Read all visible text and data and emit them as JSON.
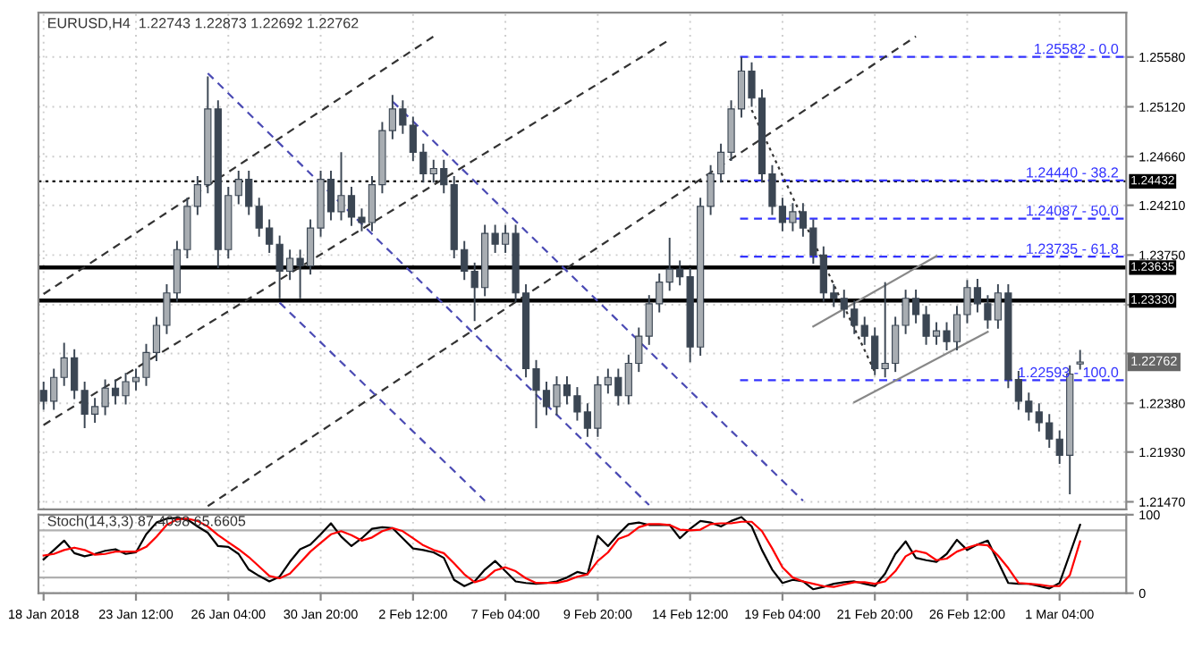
{
  "chart_data": [
    {
      "type": "candlestick",
      "title": "EURUSD,H4  1.22743 1.22873 1.22692 1.22762",
      "categories": [
        null,
        null,
        null,
        null,
        null,
        null,
        null,
        null,
        null,
        null,
        null,
        null,
        null,
        null,
        null,
        null,
        null,
        null,
        null,
        null,
        null,
        null,
        null,
        null,
        null,
        null,
        null,
        null,
        null,
        null,
        null,
        null,
        null,
        null,
        null,
        null,
        null,
        null,
        null,
        null,
        null,
        null,
        null,
        null,
        null,
        null,
        null,
        null,
        null,
        null,
        null,
        null,
        null,
        null,
        null,
        null,
        null,
        null,
        null,
        null,
        null,
        null,
        null,
        null,
        null,
        null,
        null,
        null,
        null,
        null,
        null,
        null,
        null,
        null,
        null,
        null,
        null,
        null,
        null,
        null,
        null,
        null,
        null,
        null,
        null,
        null,
        null,
        null,
        null,
        null,
        null,
        null,
        null,
        null,
        null,
        null,
        null,
        null,
        null,
        null,
        null,
        null,
        null,
        null,
        null,
        null
      ],
      "ohlc": [
        [
          1.225,
          1.2258,
          1.2232,
          1.224
        ],
        [
          1.224,
          1.227,
          1.2232,
          1.2262
        ],
        [
          1.2262,
          1.2294,
          1.2254,
          1.228
        ],
        [
          1.228,
          1.2288,
          1.2242,
          1.225
        ],
        [
          1.225,
          1.2258,
          1.2215,
          1.2228
        ],
        [
          1.2228,
          1.2243,
          1.222,
          1.2235
        ],
        [
          1.2235,
          1.226,
          1.2227,
          1.2252
        ],
        [
          1.2252,
          1.226,
          1.2237,
          1.2245
        ],
        [
          1.2245,
          1.2266,
          1.2237,
          1.2258
        ],
        [
          1.2258,
          1.227,
          1.225,
          1.2262
        ],
        [
          1.2262,
          1.2293,
          1.2254,
          1.2285
        ],
        [
          1.2285,
          1.2318,
          1.2277,
          1.231
        ],
        [
          1.231,
          1.2348,
          1.2302,
          1.234
        ],
        [
          1.234,
          1.2388,
          1.2332,
          1.238
        ],
        [
          1.238,
          1.2428,
          1.2372,
          1.242
        ],
        [
          1.242,
          1.2448,
          1.2412,
          1.244
        ],
        [
          1.244,
          1.254,
          1.2432,
          1.251
        ],
        [
          1.251,
          1.2518,
          1.2363,
          1.238
        ],
        [
          1.238,
          1.2438,
          1.2372,
          1.243
        ],
        [
          1.243,
          1.2453,
          1.2422,
          1.2445
        ],
        [
          1.2445,
          1.2453,
          1.2412,
          1.242
        ],
        [
          1.242,
          1.2428,
          1.2392,
          1.24
        ],
        [
          1.24,
          1.2408,
          1.2377,
          1.2385
        ],
        [
          1.2385,
          1.2393,
          1.2335,
          1.236
        ],
        [
          1.236,
          1.238,
          1.2352,
          1.2372
        ],
        [
          1.2372,
          1.238,
          1.2335,
          1.2365
        ],
        [
          1.2365,
          1.2408,
          1.2357,
          1.24
        ],
        [
          1.24,
          1.2453,
          1.2392,
          1.2445
        ],
        [
          1.2445,
          1.2453,
          1.2407,
          1.2415
        ],
        [
          1.2415,
          1.247,
          1.2407,
          1.243
        ],
        [
          1.243,
          1.2438,
          1.2402,
          1.241
        ],
        [
          1.241,
          1.2418,
          1.2397,
          1.2405
        ],
        [
          1.2405,
          1.2448,
          1.2397,
          1.244
        ],
        [
          1.244,
          1.2498,
          1.2432,
          1.249
        ],
        [
          1.249,
          1.2523,
          1.2482,
          1.251
        ],
        [
          1.251,
          1.2518,
          1.2487,
          1.2495
        ],
        [
          1.2495,
          1.2503,
          1.2462,
          1.247
        ],
        [
          1.247,
          1.2478,
          1.2442,
          1.245
        ],
        [
          1.245,
          1.2463,
          1.2442,
          1.2455
        ],
        [
          1.2455,
          1.2463,
          1.2432,
          1.244
        ],
        [
          1.244,
          1.2448,
          1.2372,
          1.238
        ],
        [
          1.238,
          1.2388,
          1.2352,
          1.236
        ],
        [
          1.236,
          1.2368,
          1.2314,
          1.2345
        ],
        [
          1.2345,
          1.2403,
          1.2337,
          1.2395
        ],
        [
          1.2395,
          1.2403,
          1.2377,
          1.2385
        ],
        [
          1.2385,
          1.2403,
          1.2377,
          1.2395
        ],
        [
          1.2395,
          1.2403,
          1.2332,
          1.234
        ],
        [
          1.234,
          1.2348,
          1.2262,
          1.227
        ],
        [
          1.227,
          1.2278,
          1.2215,
          1.225
        ],
        [
          1.225,
          1.2258,
          1.2227,
          1.2235
        ],
        [
          1.2235,
          1.2263,
          1.2227,
          1.2255
        ],
        [
          1.2255,
          1.2263,
          1.2237,
          1.2245
        ],
        [
          1.2245,
          1.2253,
          1.2222,
          1.223
        ],
        [
          1.223,
          1.2238,
          1.2207,
          1.2215
        ],
        [
          1.2215,
          1.2263,
          1.2207,
          1.2255
        ],
        [
          1.2255,
          1.227,
          1.2247,
          1.2262
        ],
        [
          1.2262,
          1.227,
          1.2236,
          1.2245
        ],
        [
          1.2245,
          1.2283,
          1.2237,
          1.2275
        ],
        [
          1.2275,
          1.2308,
          1.2267,
          1.23
        ],
        [
          1.23,
          1.2338,
          1.2292,
          1.233
        ],
        [
          1.233,
          1.2358,
          1.2322,
          1.235
        ],
        [
          1.235,
          1.2391,
          1.2342,
          1.2362
        ],
        [
          1.2362,
          1.237,
          1.2347,
          1.2355
        ],
        [
          1.2355,
          1.2363,
          1.2276,
          1.229
        ],
        [
          1.229,
          1.2428,
          1.2282,
          1.242
        ],
        [
          1.242,
          1.2458,
          1.2412,
          1.245
        ],
        [
          1.245,
          1.2478,
          1.2442,
          1.247
        ],
        [
          1.247,
          1.2518,
          1.2462,
          1.251
        ],
        [
          1.251,
          1.2558,
          1.2502,
          1.2545
        ],
        [
          1.2545,
          1.2553,
          1.2512,
          1.252
        ],
        [
          1.252,
          1.2528,
          1.2442,
          1.245
        ],
        [
          1.245,
          1.2458,
          1.2412,
          1.242
        ],
        [
          1.242,
          1.2428,
          1.2397,
          1.2405
        ],
        [
          1.2405,
          1.2423,
          1.2397,
          1.2415
        ],
        [
          1.2415,
          1.2423,
          1.2392,
          1.24
        ],
        [
          1.24,
          1.2408,
          1.2367,
          1.2375
        ],
        [
          1.2375,
          1.2383,
          1.2332,
          1.234
        ],
        [
          1.234,
          1.2348,
          1.2327,
          1.2335
        ],
        [
          1.2335,
          1.2343,
          1.2317,
          1.2325
        ],
        [
          1.2325,
          1.2333,
          1.2302,
          1.231
        ],
        [
          1.231,
          1.2318,
          1.2292,
          1.23
        ],
        [
          1.23,
          1.2308,
          1.2264,
          1.227
        ],
        [
          1.227,
          1.235,
          1.2262,
          1.2275
        ],
        [
          1.2275,
          1.2318,
          1.2267,
          1.231
        ],
        [
          1.231,
          1.2343,
          1.2302,
          1.2335
        ],
        [
          1.2335,
          1.2343,
          1.2312,
          1.232
        ],
        [
          1.232,
          1.2328,
          1.2292,
          1.23
        ],
        [
          1.23,
          1.2313,
          1.2292,
          1.2305
        ],
        [
          1.2305,
          1.2313,
          1.2287,
          1.2295
        ],
        [
          1.2295,
          1.2328,
          1.2287,
          1.232
        ],
        [
          1.232,
          1.2352,
          1.2312,
          1.2345
        ],
        [
          1.2345,
          1.2353,
          1.2322,
          1.233
        ],
        [
          1.233,
          1.2338,
          1.2307,
          1.2315
        ],
        [
          1.2315,
          1.2348,
          1.2307,
          1.234
        ],
        [
          1.234,
          1.2348,
          1.2252,
          1.226
        ],
        [
          1.226,
          1.2268,
          1.2232,
          1.224
        ],
        [
          1.224,
          1.2248,
          1.2222,
          1.223
        ],
        [
          1.223,
          1.2238,
          1.2212,
          1.222
        ],
        [
          1.222,
          1.2228,
          1.2197,
          1.2205
        ],
        [
          1.2205,
          1.2213,
          1.2182,
          1.219
        ],
        [
          1.219,
          1.2273,
          1.2154,
          1.2265
        ],
        [
          1.22743,
          1.22873,
          1.22692,
          1.22762
        ],
        null,
        null,
        null,
        null
      ],
      "colors": [
        "#3b4653",
        "#a8adb2",
        "#a8adb2",
        "#3b4653",
        "#3b4653",
        "#a8adb2",
        "#a8adb2",
        "#3b4653",
        "#a8adb2",
        "#a8adb2",
        "#a8adb2",
        "#a8adb2",
        "#a8adb2",
        "#a8adb2",
        "#a8adb2",
        "#a8adb2",
        "#a8adb2",
        "#3b4653",
        "#a8adb2",
        "#a8adb2",
        "#3b4653",
        "#3b4653",
        "#3b4653",
        "#3b4653",
        "#a8adb2",
        "#3b4653",
        "#a8adb2",
        "#a8adb2",
        "#3b4653",
        "#a8adb2",
        "#3b4653",
        "#3b4653",
        "#a8adb2",
        "#a8adb2",
        "#a8adb2",
        "#3b4653",
        "#3b4653",
        "#3b4653",
        "#a8adb2",
        "#3b4653",
        "#3b4653",
        "#3b4653",
        "#3b4653",
        "#a8adb2",
        "#3b4653",
        "#a8adb2",
        "#3b4653",
        "#3b4653",
        "#3b4653",
        "#3b4653",
        "#a8adb2",
        "#3b4653",
        "#3b4653",
        "#3b4653",
        "#a8adb2",
        "#a8adb2",
        "#3b4653",
        "#a8adb2",
        "#a8adb2",
        "#a8adb2",
        "#a8adb2",
        "#a8adb2",
        "#3b4653",
        "#3b4653",
        "#a8adb2",
        "#a8adb2",
        "#a8adb2",
        "#a8adb2",
        "#a8adb2",
        "#3b4653",
        "#3b4653",
        "#3b4653",
        "#3b4653",
        "#a8adb2",
        "#3b4653",
        "#3b4653",
        "#3b4653",
        "#3b4653",
        "#3b4653",
        "#3b4653",
        "#3b4653",
        "#3b4653",
        "#a8adb2",
        "#a8adb2",
        "#a8adb2",
        "#3b4653",
        "#3b4653",
        "#a8adb2",
        "#3b4653",
        "#a8adb2",
        "#a8adb2",
        "#3b4653",
        "#3b4653",
        "#a8adb2",
        "#3b4653",
        "#3b4653",
        "#3b4653",
        "#3b4653",
        "#3b4653",
        "#3b4653",
        "#a8adb2",
        "#a8adb2",
        null,
        null,
        null,
        null
      ],
      "series": [
        {
          "type": "line",
          "color": "#333333",
          "line_style": "dashed",
          "values": [
            1.2339,
            null,
            null,
            null,
            null,
            null,
            null,
            null,
            null,
            null,
            null,
            null,
            null,
            null,
            null,
            null,
            null,
            null,
            null,
            null,
            null,
            null,
            null,
            null,
            null,
            null,
            null,
            null,
            null,
            null,
            null,
            null,
            null,
            null,
            null,
            null,
            null,
            null,
            1.2577,
            null,
            null,
            null,
            null,
            null,
            null,
            null,
            null,
            null,
            null,
            null,
            null,
            null,
            null,
            null,
            null,
            null,
            null,
            null,
            null,
            null,
            null,
            null,
            null,
            null,
            null,
            null,
            null,
            null,
            null,
            null,
            null,
            null,
            null,
            null,
            null,
            null,
            null,
            null,
            null,
            null,
            null,
            null,
            null,
            null,
            null,
            null,
            null,
            null,
            null,
            null,
            null,
            null,
            null,
            null,
            null,
            null,
            null,
            null,
            null,
            null,
            null,
            null,
            null,
            null,
            null,
            null
          ]
        },
        {
          "type": "line",
          "color": "#333333",
          "line_style": "dashed",
          "values": [
            1.2218,
            null,
            null,
            null,
            null,
            null,
            null,
            null,
            null,
            null,
            null,
            null,
            null,
            null,
            null,
            null,
            null,
            null,
            null,
            null,
            null,
            null,
            null,
            null,
            null,
            null,
            null,
            null,
            null,
            null,
            null,
            null,
            null,
            null,
            null,
            null,
            null,
            null,
            null,
            null,
            null,
            null,
            null,
            null,
            null,
            null,
            null,
            null,
            null,
            null,
            null,
            null,
            null,
            null,
            null,
            null,
            null,
            null,
            null,
            null,
            null,
            1.2574,
            null,
            null,
            null,
            null,
            null,
            null,
            null,
            null,
            null,
            null,
            null,
            null,
            null,
            null,
            null,
            null,
            null,
            null,
            null,
            null,
            null,
            null,
            null,
            null,
            null,
            null,
            null,
            null,
            null,
            null,
            null,
            null,
            null,
            null,
            null,
            null,
            null,
            null,
            null,
            null,
            null,
            null,
            null,
            null
          ]
        },
        {
          "type": "line",
          "color": "#333333",
          "line_style": "dashed",
          "values": [
            null,
            null,
            null,
            null,
            null,
            null,
            null,
            null,
            null,
            null,
            null,
            null,
            null,
            null,
            null,
            null,
            1.2143,
            null,
            null,
            null,
            null,
            null,
            null,
            null,
            null,
            null,
            null,
            null,
            null,
            null,
            null,
            null,
            null,
            null,
            null,
            null,
            null,
            null,
            null,
            null,
            null,
            null,
            null,
            null,
            null,
            null,
            null,
            null,
            null,
            null,
            null,
            null,
            null,
            null,
            null,
            null,
            null,
            null,
            null,
            null,
            null,
            null,
            null,
            null,
            null,
            null,
            null,
            null,
            null,
            null,
            null,
            null,
            null,
            null,
            null,
            null,
            null,
            null,
            null,
            null,
            null,
            null,
            null,
            null,
            null,
            1.2577,
            null,
            null,
            null,
            null,
            null,
            null,
            null,
            null,
            null,
            null,
            null,
            null,
            null,
            null,
            null,
            null,
            null,
            null,
            null,
            null
          ]
        },
        {
          "type": "line",
          "color": "#333333",
          "line_style": "dotted",
          "values": [
            null,
            null,
            null,
            null,
            null,
            null,
            null,
            null,
            null,
            null,
            null,
            null,
            null,
            null,
            null,
            null,
            null,
            null,
            null,
            null,
            null,
            null,
            null,
            null,
            null,
            null,
            null,
            null,
            null,
            null,
            null,
            null,
            null,
            null,
            null,
            null,
            null,
            null,
            null,
            null,
            null,
            null,
            null,
            null,
            null,
            null,
            null,
            null,
            null,
            null,
            null,
            null,
            null,
            null,
            null,
            null,
            null,
            null,
            null,
            null,
            null,
            null,
            null,
            null,
            null,
            null,
            null,
            null,
            null,
            1.2509,
            null,
            null,
            null,
            null,
            null,
            null,
            null,
            null,
            null,
            null,
            null,
            1.2267,
            null,
            null,
            null,
            null,
            null,
            null,
            null,
            null,
            null,
            null,
            null,
            null,
            null,
            null,
            null,
            null,
            null,
            null,
            null,
            null,
            null,
            null,
            null,
            null
          ]
        },
        {
          "type": "line",
          "color": "#4b4bb4",
          "line_style": "dashed",
          "values": [
            null,
            null,
            null,
            null,
            null,
            null,
            null,
            null,
            null,
            null,
            null,
            null,
            null,
            null,
            null,
            null,
            null,
            null,
            null,
            null,
            null,
            null,
            null,
            1.2331,
            null,
            null,
            null,
            null,
            null,
            null,
            null,
            null,
            null,
            null,
            null,
            null,
            null,
            null,
            null,
            null,
            null,
            null,
            null,
            1.2148,
            null,
            null,
            null,
            null,
            null,
            null,
            null,
            null,
            null,
            null,
            null,
            null,
            null,
            null,
            null,
            null,
            null,
            null,
            null,
            null,
            null,
            null,
            null,
            null,
            null,
            null,
            null,
            null,
            null,
            null,
            null,
            null,
            null,
            null,
            null,
            null,
            null,
            null,
            null,
            null,
            null,
            null,
            null,
            null,
            null,
            null,
            null,
            null,
            null,
            null,
            null,
            null,
            null,
            null,
            null,
            null,
            null,
            null,
            null,
            null,
            null,
            null
          ]
        },
        {
          "type": "line",
          "color": "#4b4bb4",
          "line_style": "dashed",
          "values": [
            null,
            null,
            null,
            null,
            null,
            null,
            null,
            null,
            null,
            null,
            null,
            null,
            null,
            null,
            null,
            null,
            1.2543,
            null,
            null,
            null,
            null,
            null,
            null,
            null,
            null,
            null,
            null,
            null,
            null,
            null,
            null,
            null,
            null,
            null,
            null,
            null,
            null,
            null,
            null,
            null,
            null,
            null,
            null,
            null,
            null,
            null,
            null,
            null,
            null,
            null,
            null,
            null,
            null,
            null,
            null,
            null,
            null,
            null,
            null,
            1.2144,
            null,
            null,
            null,
            null,
            null,
            null,
            null,
            null,
            null,
            null,
            null,
            null,
            null,
            null,
            null,
            null,
            null,
            null,
            null,
            null,
            null,
            null,
            null,
            null,
            null,
            null,
            null,
            null,
            null,
            null,
            null,
            null,
            null,
            null,
            null,
            null,
            null,
            null,
            null,
            null,
            null,
            null,
            null,
            null,
            null,
            null
          ]
        },
        {
          "type": "line",
          "color": "#4b4bb4",
          "line_style": "dashed",
          "values": [
            null,
            null,
            null,
            null,
            null,
            null,
            null,
            null,
            null,
            null,
            null,
            null,
            null,
            null,
            null,
            null,
            null,
            null,
            null,
            null,
            null,
            null,
            null,
            null,
            null,
            null,
            null,
            null,
            null,
            null,
            null,
            null,
            null,
            null,
            1.2517,
            null,
            null,
            null,
            null,
            null,
            null,
            null,
            null,
            null,
            null,
            null,
            null,
            null,
            null,
            null,
            null,
            null,
            null,
            null,
            null,
            null,
            null,
            null,
            null,
            null,
            null,
            null,
            null,
            null,
            null,
            null,
            null,
            null,
            null,
            null,
            null,
            null,
            null,
            null,
            1.2148,
            null,
            null,
            null,
            null,
            null,
            null,
            null,
            null,
            null,
            null,
            null,
            null,
            null,
            null,
            null,
            null,
            null,
            null,
            null,
            null,
            null,
            null,
            null,
            null,
            null,
            null,
            null,
            null,
            null,
            null,
            null
          ]
        },
        {
          "type": "line",
          "color": "#888888",
          "line_style": "solid",
          "values": [
            null,
            null,
            null,
            null,
            null,
            null,
            null,
            null,
            null,
            null,
            null,
            null,
            null,
            null,
            null,
            null,
            null,
            null,
            null,
            null,
            null,
            null,
            null,
            null,
            null,
            null,
            null,
            null,
            null,
            null,
            null,
            null,
            null,
            null,
            null,
            null,
            null,
            null,
            null,
            null,
            null,
            null,
            null,
            null,
            null,
            null,
            null,
            null,
            null,
            null,
            null,
            null,
            null,
            null,
            null,
            null,
            null,
            null,
            null,
            null,
            null,
            null,
            null,
            null,
            null,
            null,
            null,
            null,
            null,
            null,
            null,
            null,
            null,
            null,
            null,
            1.2309,
            null,
            null,
            null,
            null,
            null,
            null,
            null,
            null,
            null,
            null,
            null,
            1.2374,
            null,
            null,
            null,
            null,
            null,
            null,
            null,
            null,
            null,
            null,
            null,
            null,
            null,
            null,
            null,
            null,
            null,
            null
          ]
        },
        {
          "type": "line",
          "color": "#888888",
          "line_style": "solid",
          "values": [
            null,
            null,
            null,
            null,
            null,
            null,
            null,
            null,
            null,
            null,
            null,
            null,
            null,
            null,
            null,
            null,
            null,
            null,
            null,
            null,
            null,
            null,
            null,
            null,
            null,
            null,
            null,
            null,
            null,
            null,
            null,
            null,
            null,
            null,
            null,
            null,
            null,
            null,
            null,
            null,
            null,
            null,
            null,
            null,
            null,
            null,
            null,
            null,
            null,
            null,
            null,
            null,
            null,
            null,
            null,
            null,
            null,
            null,
            null,
            null,
            null,
            null,
            null,
            null,
            null,
            null,
            null,
            null,
            null,
            null,
            null,
            null,
            null,
            null,
            null,
            null,
            null,
            null,
            null,
            1.2239,
            null,
            null,
            null,
            null,
            null,
            null,
            null,
            null,
            null,
            null,
            null,
            null,
            1.2304,
            null,
            null,
            null,
            null,
            null,
            null,
            null,
            null,
            null,
            null,
            null,
            null,
            null
          ]
        }
      ],
      "ylim": [
        1.214,
        1.2599
      ],
      "yticks": [
        {
          "value": 1.2558,
          "label": "1.25580"
        },
        {
          "value": 1.2512,
          "label": "1.25120"
        },
        {
          "value": 1.2466,
          "label": "1.24660"
        },
        {
          "value": 1.2421,
          "label": "1.24210"
        },
        {
          "value": 1.2375,
          "label": "1.23750"
        },
        {
          "value": 1.2329,
          "label": null
        },
        {
          "value": 1.2284,
          "label": null
        },
        {
          "value": 1.2238,
          "label": "1.22380"
        },
        {
          "value": 1.2193,
          "label": "1.21930"
        },
        {
          "value": 1.2147,
          "label": "1.21470"
        }
      ],
      "ref_lines": [
        {
          "axis": "y",
          "value": 1.24432,
          "label": "1.24432",
          "color": "#000000",
          "line_style": "dotted"
        },
        {
          "axis": "y",
          "value": 1.23635,
          "label": "1.23635",
          "color": "#000000",
          "line_style": "solid"
        },
        {
          "axis": "y",
          "value": 1.2333,
          "label": "1.23330",
          "color": "#000000",
          "line_style": "solid"
        },
        {
          "axis": "y",
          "value": 1.25582,
          "label": "1.25582 - 0.0",
          "color": "#3333ff",
          "line_style": "dashed"
        },
        {
          "axis": "y",
          "value": 1.2444,
          "label": "1.24440 - 38.2",
          "color": "#3333ff",
          "line_style": "dashed"
        },
        {
          "axis": "y",
          "value": 1.24087,
          "label": "1.24087 - 50.0",
          "color": "#3333ff",
          "line_style": "dashed"
        },
        {
          "axis": "y",
          "value": 1.23735,
          "label": "1.23735 - 61.8",
          "color": "#3333ff",
          "line_style": "dashed"
        },
        {
          "axis": "y",
          "value": 1.22593,
          "label": "1.22593 - 100.0",
          "color": "#3333ff",
          "line_style": "dashed"
        }
      ],
      "annotations": [
        "1.22762"
      ],
      "grid": true,
      "tick_labels": "y"
    },
    {
      "type": "line",
      "title": "Stoch(14,3,3) 87.4098 65.6605",
      "categories": [
        "18 Jan 2018",
        null,
        null,
        null,
        null,
        null,
        null,
        null,
        null,
        "23 Jan 12:00",
        null,
        null,
        null,
        null,
        null,
        null,
        null,
        null,
        "26 Jan 04:00",
        null,
        null,
        null,
        null,
        null,
        null,
        null,
        null,
        "30 Jan 20:00",
        null,
        null,
        null,
        null,
        null,
        null,
        null,
        null,
        "2 Feb 12:00",
        null,
        null,
        null,
        null,
        null,
        null,
        null,
        null,
        "7 Feb 04:00",
        null,
        null,
        null,
        null,
        null,
        null,
        null,
        null,
        "9 Feb 20:00",
        null,
        null,
        null,
        null,
        null,
        null,
        null,
        null,
        "14 Feb 12:00",
        null,
        null,
        null,
        null,
        null,
        null,
        null,
        null,
        "19 Feb 04:00",
        null,
        null,
        null,
        null,
        null,
        null,
        null,
        null,
        "21 Feb 20:00",
        null,
        null,
        null,
        null,
        null,
        null,
        null,
        null,
        "26 Feb 12:00",
        null,
        null,
        null,
        null,
        null,
        null,
        null,
        null,
        "1 Mar 04:00",
        null,
        null,
        null,
        null,
        null,
        null
      ],
      "series": [
        {
          "color": "#000000",
          "values": [
            43,
            55,
            67,
            51,
            47,
            50,
            54,
            56,
            50,
            52,
            75,
            90,
            95,
            96,
            94,
            85,
            77,
            60,
            59,
            50,
            30,
            22,
            15,
            21,
            40,
            56,
            62,
            75,
            89,
            72,
            60,
            70,
            82,
            84,
            83,
            70,
            57,
            55,
            52,
            45,
            17,
            9,
            15,
            30,
            41,
            28,
            15,
            13,
            12,
            13,
            15,
            20,
            27,
            24,
            73,
            60,
            75,
            88,
            90,
            87,
            87,
            87,
            70,
            82,
            92,
            90,
            85,
            92,
            97,
            85,
            55,
            30,
            13,
            17,
            15,
            5,
            8,
            12,
            14,
            15,
            12,
            9,
            25,
            50,
            66,
            45,
            42,
            40,
            50,
            68,
            55,
            62,
            67,
            40,
            13,
            12,
            12,
            9,
            6,
            13,
            50,
            87,
            null,
            null,
            null,
            null
          ]
        },
        {
          "color": "#ff0000",
          "values": [
            48,
            50,
            55,
            58,
            55,
            49,
            50,
            53,
            53,
            53,
            59,
            72,
            87,
            94,
            95,
            92,
            85,
            74,
            65,
            56,
            46,
            34,
            22,
            19,
            25,
            39,
            53,
            64,
            75,
            79,
            74,
            67,
            71,
            79,
            83,
            79,
            70,
            61,
            55,
            51,
            38,
            24,
            14,
            18,
            29,
            33,
            28,
            19,
            13,
            13,
            13,
            16,
            21,
            24,
            41,
            52,
            69,
            74,
            84,
            88,
            88,
            87,
            81,
            80,
            81,
            88,
            89,
            89,
            91,
            91,
            79,
            57,
            33,
            20,
            15,
            12,
            9,
            8,
            11,
            14,
            14,
            12,
            15,
            28,
            47,
            54,
            51,
            42,
            44,
            53,
            58,
            62,
            61,
            48,
            32,
            13,
            12,
            11,
            9,
            9,
            23,
            66,
            null,
            null,
            null,
            null
          ]
        }
      ],
      "ylim": [
        0,
        100
      ],
      "yticks": [
        0,
        100
      ],
      "ref_lines": [
        {
          "axis": "y",
          "value": 80,
          "color": "#b0b0b0",
          "line_style": "solid"
        },
        {
          "axis": "y",
          "value": 20,
          "color": "#b0b0b0",
          "line_style": "solid"
        }
      ],
      "grid": true
    }
  ]
}
